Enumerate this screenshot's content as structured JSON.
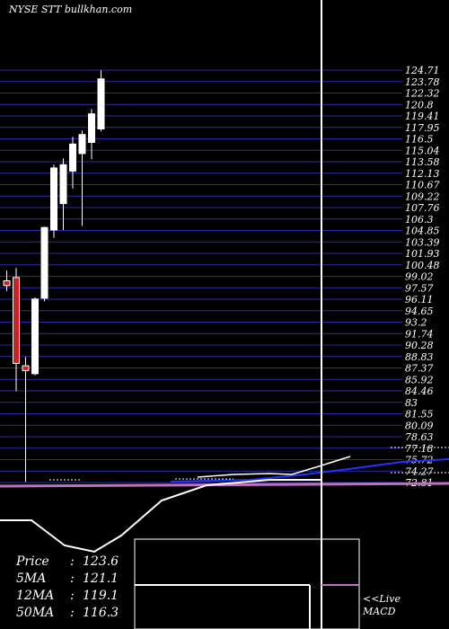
{
  "ticker_label": "NYSE STT bullkhan.com",
  "indicators": {
    "price": {
      "label": "Price",
      "value": "123.6"
    },
    "ma5": {
      "label": "5MA",
      "value": "121.1"
    },
    "ma12": {
      "label": "12MA",
      "value": "119.1"
    },
    "ma50": {
      "label": "50MA",
      "value": "116.3"
    }
  },
  "macd_label": {
    "line1": "<<Live",
    "line2": "MACD"
  },
  "colors": {
    "background": "#000000",
    "grid": "#2a2aa8",
    "up": "#ffffff",
    "down": "#cc2222",
    "ma_pink": "#c070c0",
    "ma_blue": "#2233ff",
    "text": "#ffffff"
  },
  "chart_data": {
    "type": "candlestick",
    "y_axis_labels": [
      "124.71",
      "123.78",
      "122.32",
      "120.8",
      "119.41",
      "117.95",
      "116.5",
      "115.04",
      "113.58",
      "112.13",
      "110.67",
      "109.22",
      "107.76",
      "106.3",
      "104.85",
      "103.39",
      "101.93",
      "100.48",
      "99.02",
      "97.57",
      "96.11",
      "94.65",
      "93.2",
      "91.74",
      "90.28",
      "88.83",
      "87.37",
      "85.92",
      "84.46",
      "83",
      "81.55",
      "80.09",
      "78.63",
      "77.18",
      "75.72",
      "74.27",
      "72.81"
    ],
    "ylim": [
      72.81,
      124.71
    ],
    "candles": [
      {
        "o": 98.2,
        "h": 99.5,
        "l": 96.9,
        "c": 97.6
      },
      {
        "o": 98.6,
        "h": 99.8,
        "l": 84.3,
        "c": 87.8
      },
      {
        "o": 87.5,
        "h": 88.6,
        "l": 72.9,
        "c": 86.9
      },
      {
        "o": 86.5,
        "h": 96.1,
        "l": 86.3,
        "c": 95.9
      },
      {
        "o": 96.0,
        "h": 105.0,
        "l": 95.6,
        "c": 104.9
      },
      {
        "o": 104.6,
        "h": 112.8,
        "l": 103.6,
        "c": 112.4
      },
      {
        "o": 107.9,
        "h": 113.6,
        "l": 104.6,
        "c": 112.8
      },
      {
        "o": 112.0,
        "h": 116.3,
        "l": 109.8,
        "c": 115.4
      },
      {
        "o": 114.2,
        "h": 117.1,
        "l": 105.1,
        "c": 116.6
      },
      {
        "o": 115.6,
        "h": 119.8,
        "l": 113.5,
        "c": 119.2
      },
      {
        "o": 117.3,
        "h": 124.7,
        "l": 117.0,
        "c": 123.6
      }
    ]
  }
}
